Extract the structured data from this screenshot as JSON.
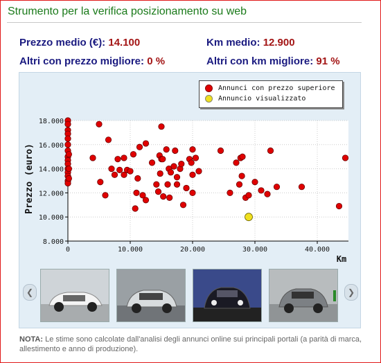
{
  "header": {
    "title": "Strumento per la verifica posizionamento su web"
  },
  "stats": {
    "avg_price_label": "Prezzo medio (€):",
    "avg_price_value": "14.100",
    "avg_km_label": "Km medio:",
    "avg_km_value": "12.900",
    "better_price_label": "Altri con prezzo migliore:",
    "better_price_value": "0 %",
    "better_km_label": "Altri con km migliore:",
    "better_km_value": "91 %"
  },
  "legend": {
    "items": [
      {
        "label": "Annunci con prezzo superiore",
        "color": "#e00000"
      },
      {
        "label": "Annuncio visualizzato",
        "color": "#f0e020"
      }
    ]
  },
  "chart_data": {
    "type": "scatter",
    "ylabel": "Prezzo (euro)",
    "xlabel": "Km",
    "xlim": [
      0,
      45000
    ],
    "ylim": [
      8000,
      18000
    ],
    "x_ticks": [
      "0",
      "10.000",
      "20.000",
      "30.000",
      "40.000"
    ],
    "y_ticks": [
      "8.000",
      "10.000",
      "12.000",
      "14.000",
      "16.000",
      "18.000"
    ],
    "grid": true,
    "legend_position": "top-right",
    "series": [
      {
        "name": "Annunci con prezzo superiore",
        "color": "#e00000",
        "points": [
          [
            0,
            18000
          ],
          [
            0,
            17700
          ],
          [
            0,
            17200
          ],
          [
            0,
            16900
          ],
          [
            0,
            16500
          ],
          [
            0,
            16000
          ],
          [
            0,
            15500
          ],
          [
            0,
            15000
          ],
          [
            0,
            14700
          ],
          [
            0,
            14400
          ],
          [
            0,
            14000
          ],
          [
            0,
            13700
          ],
          [
            0,
            13400
          ],
          [
            0,
            13000
          ],
          [
            0,
            12800
          ],
          [
            150,
            14000
          ],
          [
            150,
            15200
          ],
          [
            150,
            13200
          ],
          [
            4000,
            14900
          ],
          [
            5000,
            17700
          ],
          [
            5200,
            12900
          ],
          [
            6000,
            11800
          ],
          [
            6500,
            16400
          ],
          [
            7000,
            14000
          ],
          [
            7500,
            13500
          ],
          [
            8000,
            14800
          ],
          [
            8300,
            13900
          ],
          [
            9000,
            14900
          ],
          [
            9000,
            13500
          ],
          [
            9500,
            13900
          ],
          [
            10000,
            13800
          ],
          [
            10500,
            15200
          ],
          [
            10800,
            10700
          ],
          [
            11000,
            12000
          ],
          [
            11200,
            13200
          ],
          [
            11500,
            15800
          ],
          [
            12000,
            11800
          ],
          [
            12500,
            11400
          ],
          [
            12500,
            16100
          ],
          [
            13500,
            14500
          ],
          [
            14200,
            12700
          ],
          [
            14500,
            12100
          ],
          [
            14700,
            15100
          ],
          [
            14800,
            13600
          ],
          [
            15000,
            14800
          ],
          [
            15000,
            17500
          ],
          [
            15200,
            14800
          ],
          [
            15300,
            11700
          ],
          [
            15800,
            15600
          ],
          [
            16000,
            12700
          ],
          [
            16200,
            14000
          ],
          [
            16300,
            11600
          ],
          [
            16500,
            13700
          ],
          [
            17000,
            14200
          ],
          [
            17200,
            15500
          ],
          [
            17500,
            12700
          ],
          [
            17500,
            13300
          ],
          [
            18000,
            14000
          ],
          [
            18200,
            14400
          ],
          [
            18500,
            11000
          ],
          [
            19000,
            12400
          ],
          [
            19500,
            14800
          ],
          [
            19800,
            14500
          ],
          [
            20000,
            15600
          ],
          [
            20000,
            13500
          ],
          [
            20000,
            12000
          ],
          [
            20500,
            14900
          ],
          [
            21000,
            13800
          ],
          [
            24500,
            15500
          ],
          [
            26000,
            12000
          ],
          [
            27000,
            14500
          ],
          [
            27500,
            12700
          ],
          [
            27700,
            14900
          ],
          [
            27900,
            13400
          ],
          [
            28000,
            15000
          ],
          [
            28500,
            11600
          ],
          [
            29000,
            11800
          ],
          [
            30000,
            12900
          ],
          [
            31000,
            12200
          ],
          [
            32000,
            11900
          ],
          [
            32500,
            15500
          ],
          [
            33500,
            12500
          ],
          [
            37500,
            12500
          ],
          [
            43500,
            10900
          ],
          [
            44500,
            14900
          ]
        ]
      },
      {
        "name": "Annuncio visualizzato",
        "color": "#f0e020",
        "points": [
          [
            29000,
            10000
          ]
        ]
      }
    ]
  },
  "gallery": {
    "prev_icon": "chevron-left-icon",
    "next_icon": "chevron-right-icon",
    "items": [
      {
        "name": "thumb-white-car",
        "body": "#f4f4f4",
        "bg": "#cfd4d8"
      },
      {
        "name": "thumb-silver-car",
        "body": "#d8dcde",
        "bg": "#9aa0a4"
      },
      {
        "name": "thumb-black-car",
        "body": "#1a1a24",
        "bg": "#3a4a8a"
      },
      {
        "name": "thumb-grey-car",
        "body": "#7c8084",
        "bg": "#b8bcbe"
      }
    ]
  },
  "note": {
    "label": "NOTA:",
    "text": " Le stime sono calcolate dall'analisi degli annunci online sui principali portali (a parità di marca, allestimento e anno di produzione)."
  }
}
